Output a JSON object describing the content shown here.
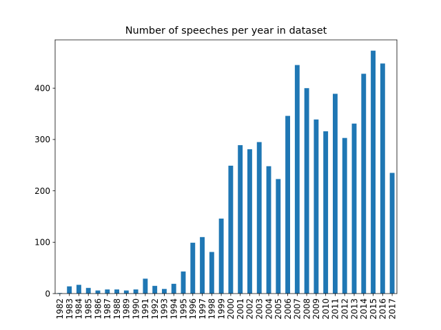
{
  "chart_data": {
    "type": "bar",
    "title": "Number of speeches per year in dataset",
    "xlabel": "",
    "ylabel": "",
    "categories": [
      "1982",
      "1983",
      "1984",
      "1985",
      "1986",
      "1987",
      "1988",
      "1989",
      "1990",
      "1991",
      "1992",
      "1993",
      "1994",
      "1995",
      "1996",
      "1997",
      "1998",
      "1999",
      "2000",
      "2001",
      "2002",
      "2003",
      "2004",
      "2005",
      "2006",
      "2007",
      "2008",
      "2009",
      "2010",
      "2011",
      "2012",
      "2013",
      "2014",
      "2015",
      "2016",
      "2017"
    ],
    "values": [
      1,
      14,
      17,
      11,
      6,
      8,
      8,
      6,
      8,
      29,
      15,
      9,
      19,
      43,
      99,
      110,
      81,
      146,
      249,
      289,
      281,
      295,
      248,
      223,
      346,
      445,
      400,
      339,
      316,
      389,
      303,
      331,
      428,
      473,
      448,
      235
    ],
    "ylim": [
      0,
      494
    ],
    "yticks": [
      0,
      100,
      200,
      300,
      400
    ],
    "bar_color": "#1f77b4",
    "grid": false,
    "legend": "none"
  }
}
